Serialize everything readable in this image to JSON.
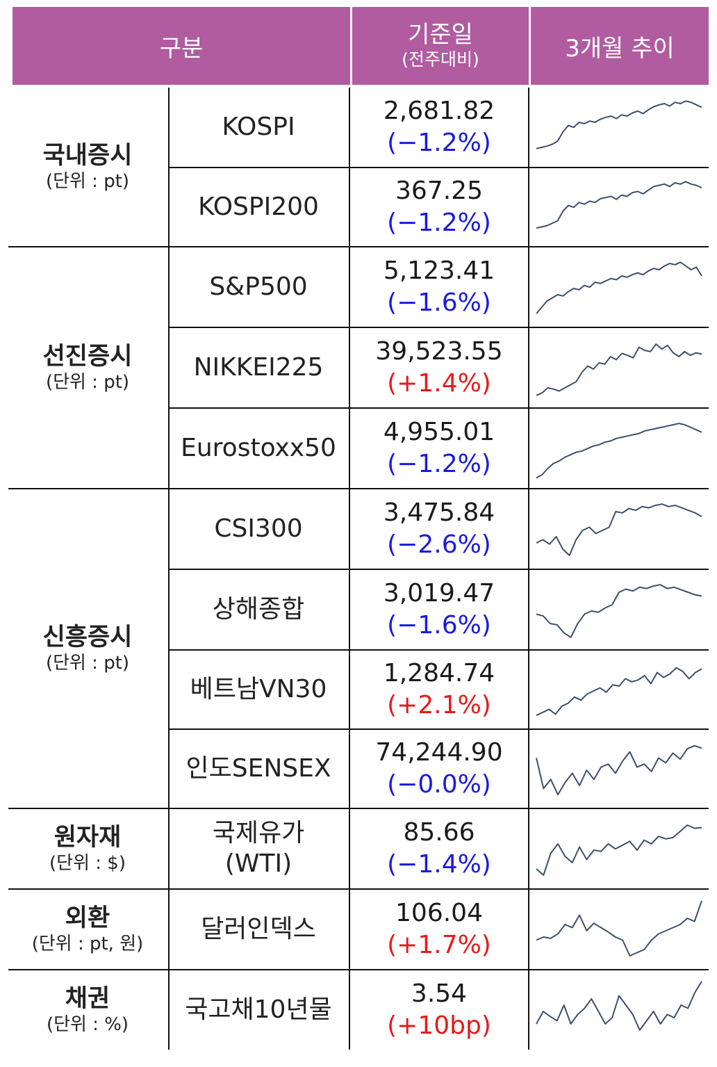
{
  "header": {
    "col1": "구분",
    "col2_main": "기준일",
    "col2_sub": "(전주대비)",
    "col3": "3개월 추이"
  },
  "categories": [
    {
      "name": "국내증시",
      "unit": "(단위 : pt)"
    },
    {
      "name": "선진증시",
      "unit": "(단위 : pt)"
    },
    {
      "name": "신흥증시",
      "unit": "(단위 : pt)"
    },
    {
      "name": "원자재",
      "unit": "(단위 : $)"
    },
    {
      "name": "외환",
      "unit": "(단위 : pt, 원)"
    },
    {
      "name": "채권",
      "unit": "(단위 : %)"
    }
  ],
  "rows": [
    {
      "name": "KOSPI",
      "value": "2,681.82",
      "change": "(−1.2%)",
      "dir": "neg"
    },
    {
      "name": "KOSPI200",
      "value": "367.25",
      "change": "(−1.2%)",
      "dir": "neg"
    },
    {
      "name": "S&P500",
      "value": "5,123.41",
      "change": "(−1.6%)",
      "dir": "neg"
    },
    {
      "name": "NIKKEI225",
      "value": "39,523.55",
      "change": "(+1.4%)",
      "dir": "pos"
    },
    {
      "name": "Eurostoxx50",
      "value": "4,955.01",
      "change": "(−1.2%)",
      "dir": "neg"
    },
    {
      "name": "CSI300",
      "value": "3,475.84",
      "change": "(−2.6%)",
      "dir": "neg"
    },
    {
      "name": "상해종합",
      "value": "3,019.47",
      "change": "(−1.6%)",
      "dir": "neg"
    },
    {
      "name": "베트남VN30",
      "value": "1,284.74",
      "change": "(+2.1%)",
      "dir": "pos"
    },
    {
      "name": "인도SENSEX",
      "value": "74,244.90",
      "change": "(−0.0%)",
      "dir": "neg"
    },
    {
      "name": "국제유가",
      "name2": "(WTI)",
      "value": "85.66",
      "change": "(−1.4%)",
      "dir": "neg"
    },
    {
      "name": "달러인덱스",
      "value": "106.04",
      "change": "(+1.7%)",
      "dir": "pos"
    },
    {
      "name": "국고채10년물",
      "value": "3.54",
      "change": "(+10bp)",
      "dir": "pos"
    }
  ],
  "colors": {
    "header_bg": "#b15ba0",
    "negative": "#1a1adf",
    "positive": "#e51b1b",
    "sparkline": "#3d4f6b"
  },
  "sparklines": [
    [
      0.18,
      0.2,
      0.22,
      0.25,
      0.3,
      0.45,
      0.55,
      0.52,
      0.6,
      0.58,
      0.62,
      0.6,
      0.65,
      0.68,
      0.7,
      0.66,
      0.72,
      0.7,
      0.75,
      0.78,
      0.74,
      0.8,
      0.85,
      0.88,
      0.9,
      0.86,
      0.92,
      0.9,
      0.94,
      0.92,
      0.88,
      0.84
    ],
    [
      0.18,
      0.2,
      0.22,
      0.26,
      0.3,
      0.46,
      0.55,
      0.52,
      0.6,
      0.57,
      0.62,
      0.6,
      0.66,
      0.68,
      0.7,
      0.65,
      0.72,
      0.7,
      0.76,
      0.78,
      0.74,
      0.8,
      0.86,
      0.88,
      0.9,
      0.86,
      0.92,
      0.9,
      0.94,
      0.9,
      0.88,
      0.84
    ],
    [
      0.1,
      0.2,
      0.3,
      0.35,
      0.4,
      0.38,
      0.45,
      0.5,
      0.48,
      0.55,
      0.52,
      0.6,
      0.58,
      0.62,
      0.66,
      0.64,
      0.7,
      0.68,
      0.72,
      0.75,
      0.72,
      0.78,
      0.82,
      0.8,
      0.86,
      0.9,
      0.88,
      0.92,
      0.86,
      0.8,
      0.84,
      0.7
    ],
    [
      0.08,
      0.12,
      0.2,
      0.18,
      0.15,
      0.2,
      0.25,
      0.3,
      0.45,
      0.55,
      0.5,
      0.6,
      0.58,
      0.7,
      0.65,
      0.75,
      0.72,
      0.68,
      0.85,
      0.8,
      0.78,
      0.9,
      0.82,
      0.88,
      0.76,
      0.7,
      0.78,
      0.72,
      0.76,
      0.74
    ],
    [
      0.05,
      0.1,
      0.2,
      0.28,
      0.32,
      0.38,
      0.42,
      0.46,
      0.48,
      0.52,
      0.56,
      0.58,
      0.62,
      0.64,
      0.68,
      0.7,
      0.72,
      0.74,
      0.76,
      0.8,
      0.82,
      0.84,
      0.86,
      0.88,
      0.9,
      0.92,
      0.9,
      0.86,
      0.82,
      0.78
    ],
    [
      0.3,
      0.35,
      0.28,
      0.4,
      0.2,
      0.1,
      0.35,
      0.5,
      0.55,
      0.45,
      0.5,
      0.55,
      0.8,
      0.78,
      0.85,
      0.82,
      0.88,
      0.86,
      0.9,
      0.92,
      0.88,
      0.9,
      0.86,
      0.82,
      0.78,
      0.72
    ],
    [
      0.45,
      0.42,
      0.3,
      0.28,
      0.15,
      0.08,
      0.3,
      0.45,
      0.5,
      0.48,
      0.55,
      0.6,
      0.8,
      0.85,
      0.82,
      0.88,
      0.86,
      0.9,
      0.92,
      0.86,
      0.88,
      0.84,
      0.8,
      0.76,
      0.74
    ],
    [
      0.1,
      0.15,
      0.2,
      0.12,
      0.25,
      0.3,
      0.4,
      0.35,
      0.45,
      0.5,
      0.55,
      0.48,
      0.6,
      0.58,
      0.7,
      0.65,
      0.68,
      0.75,
      0.62,
      0.8,
      0.72,
      0.78,
      0.88,
      0.82,
      0.7,
      0.8,
      0.86
    ],
    [
      0.7,
      0.2,
      0.35,
      0.1,
      0.3,
      0.45,
      0.25,
      0.5,
      0.35,
      0.55,
      0.6,
      0.45,
      0.65,
      0.8,
      0.55,
      0.6,
      0.48,
      0.7,
      0.62,
      0.78,
      0.68,
      0.85,
      0.9,
      0.86
    ],
    [
      0.2,
      0.1,
      0.45,
      0.6,
      0.4,
      0.3,
      0.55,
      0.35,
      0.5,
      0.48,
      0.6,
      0.52,
      0.58,
      0.64,
      0.5,
      0.66,
      0.6,
      0.72,
      0.68,
      0.7,
      0.8,
      0.9,
      0.85,
      0.86
    ],
    [
      0.35,
      0.4,
      0.38,
      0.45,
      0.6,
      0.55,
      0.75,
      0.5,
      0.62,
      0.55,
      0.48,
      0.4,
      0.35,
      0.1,
      0.15,
      0.2,
      0.35,
      0.45,
      0.5,
      0.55,
      0.6,
      0.7,
      0.65,
      0.98
    ],
    [
      0.3,
      0.5,
      0.42,
      0.35,
      0.6,
      0.3,
      0.45,
      0.55,
      0.7,
      0.5,
      0.3,
      0.4,
      0.75,
      0.6,
      0.45,
      0.2,
      0.35,
      0.5,
      0.3,
      0.45,
      0.4,
      0.6,
      0.55,
      0.8,
      0.98
    ]
  ]
}
